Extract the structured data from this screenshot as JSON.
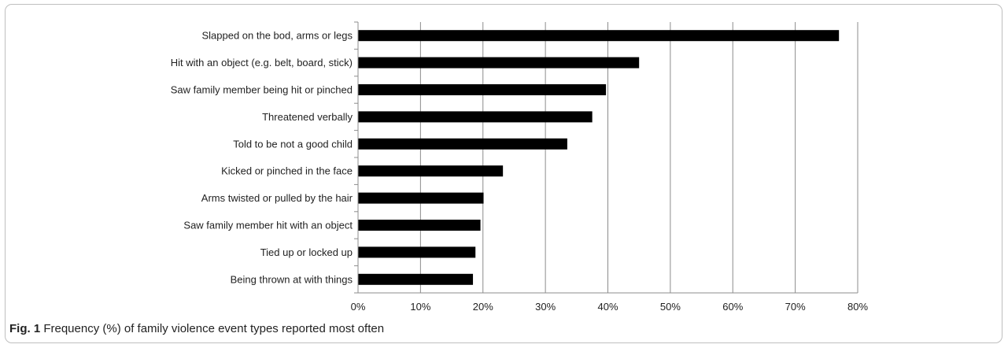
{
  "chart_data": {
    "type": "bar",
    "orientation": "horizontal",
    "categories": [
      "Slapped on the bod, arms or legs",
      "Hit with an object (e.g. belt, board, stick)",
      "Saw family member being hit or pinched",
      "Threatened verbally",
      "Told to be not a good child",
      "Kicked or pinched in the face",
      "Arms twisted or pulled by the hair",
      "Saw family member hit with an object",
      "Tied up or locked up",
      "Being thrown at with things"
    ],
    "values": [
      77,
      45,
      39.7,
      37.5,
      33.5,
      23.2,
      20.1,
      19.6,
      18.8,
      18.4
    ],
    "xlim": [
      0,
      80
    ],
    "xticks": [
      "0%",
      "10%",
      "20%",
      "30%",
      "40%",
      "50%",
      "60%",
      "70%",
      "80%"
    ],
    "bar_color": "#000000",
    "grid": "vertical",
    "legend": "none"
  },
  "caption": {
    "label": "Fig. 1",
    "text": " Frequency (%) of family violence event types reported most often"
  }
}
